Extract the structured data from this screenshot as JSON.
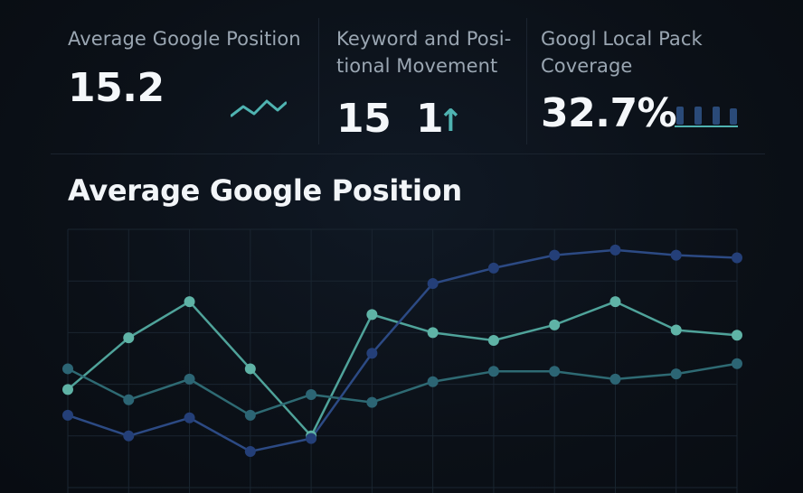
{
  "kpis": {
    "avg_position": {
      "label": "Average Google Position",
      "value": "15.2"
    },
    "movement": {
      "label": "Keyword and Posi-tional Movement",
      "value_left": "15",
      "value_right": "1",
      "arrow": "↑"
    },
    "local_pack": {
      "label": "Googl Local Pack Coverage",
      "value": "32.7%"
    }
  },
  "colors": {
    "background": "#0b1017",
    "teal": "#4fa39a",
    "dark_teal": "#2e6a73",
    "navy": "#2c4a84",
    "accent": "#4fb3b1"
  },
  "chart_data": {
    "type": "line",
    "title": "Average Google Position",
    "xlabel": "",
    "ylabel": "",
    "x": [
      1,
      2,
      3,
      4,
      5,
      6,
      7,
      8,
      9,
      10,
      11,
      12
    ],
    "ylim": [
      0,
      100
    ],
    "grid": true,
    "series": [
      {
        "values": [
          38,
          58,
          72,
          46,
          20,
          67,
          60,
          57,
          63,
          72,
          61,
          59
        ]
      },
      {
        "values": [
          46,
          34,
          42,
          28,
          36,
          33,
          41,
          45,
          45,
          42,
          44,
          48
        ]
      },
      {
        "values": [
          28,
          20,
          27,
          14,
          19,
          52,
          79,
          85,
          90,
          92,
          90,
          89
        ]
      }
    ]
  }
}
